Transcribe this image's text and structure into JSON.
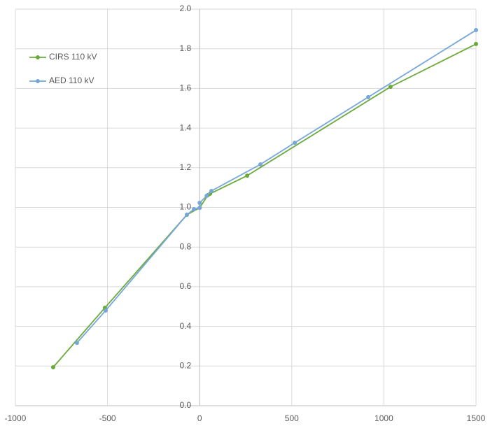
{
  "chart_data": {
    "type": "line",
    "xlim": [
      -1000,
      1500
    ],
    "xticks": [
      -1000,
      -500,
      0,
      500,
      1000,
      1500
    ],
    "ylim": [
      0,
      2
    ],
    "yticks": [
      {
        "value": 0,
        "label": "0.0"
      },
      0.2,
      0.4,
      0.6,
      0.8,
      {
        "value": 1,
        "label": "1.0"
      },
      1.2,
      1.4,
      1.6,
      1.8,
      {
        "value": 2,
        "label": "2.0"
      }
    ],
    "grid": true,
    "legend": "upper-left",
    "series": [
      {
        "name": "CIRS 110 kV",
        "color": "#6aaa3a",
        "x": [
          -795,
          -514,
          -69,
          0,
          45,
          57,
          258,
          1036,
          1500
        ],
        "values": [
          0.194,
          0.494,
          0.963,
          0.998,
          1.062,
          1.069,
          1.16,
          1.608,
          1.824
        ]
      },
      {
        "name": "AED 110 kV",
        "color": "#76a7d8",
        "x": [
          -666,
          -510,
          -69,
          -31,
          0,
          0,
          38,
          64,
          330,
          516,
          915,
          1500
        ],
        "values": [
          0.317,
          0.48,
          0.963,
          0.991,
          0.998,
          1.023,
          1.058,
          1.083,
          1.217,
          1.326,
          1.556,
          1.894
        ]
      }
    ]
  }
}
